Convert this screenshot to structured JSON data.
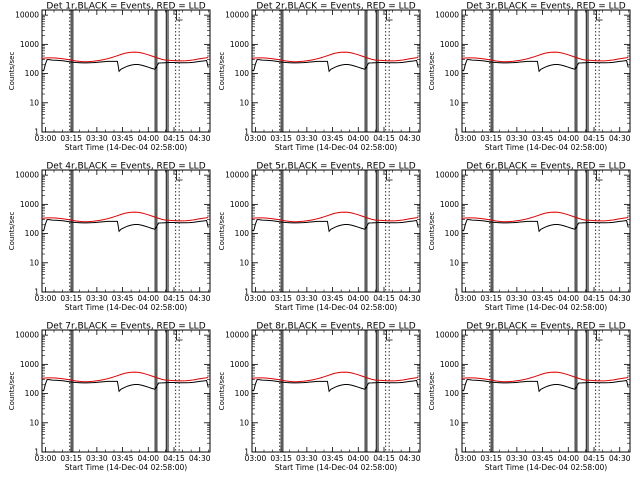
{
  "chart_data": {
    "type": "line",
    "layout": {
      "rows": 3,
      "cols": 3
    },
    "xlabel": "Start Time (14-Dec-04 02:58:00)",
    "ylabel": "Counts/sec",
    "x_ticks": [
      "03:00",
      "03:15",
      "03:30",
      "03:45",
      "04:00",
      "04:15",
      "04:30"
    ],
    "x_tick_minutes": [
      0,
      15,
      30,
      45,
      60,
      75,
      90
    ],
    "xlim_minutes": [
      -2,
      96
    ],
    "y_scale": "log",
    "ylim": [
      1,
      15000
    ],
    "y_ticks": [
      "1",
      "10",
      "100",
      "1000",
      "10000"
    ],
    "y_tick_values": [
      1,
      10,
      100,
      1000,
      10000
    ],
    "series_colors": {
      "events": "#000000",
      "lld": "#e00000"
    },
    "markers": {
      "solid_lines_minutes": [
        15.0,
        16.0,
        64.0,
        65.0,
        70.5,
        71.5
      ],
      "dotted_lines_minutes": [
        14.2,
        76.0,
        78.0
      ],
      "step_flag_minute": 76.5
    },
    "panels": [
      {
        "title": "Det 1r,BLACK = Events, RED = LLD"
      },
      {
        "title": "Det 2r,BLACK = Events, RED = LLD"
      },
      {
        "title": "Det 3r,BLACK = Events, RED = LLD"
      },
      {
        "title": "Det 4r,BLACK = Events, RED = LLD"
      },
      {
        "title": "Det 5r,BLACK = Events, RED = LLD"
      },
      {
        "title": "Det 6r,BLACK = Events, RED = LLD"
      },
      {
        "title": "Det 7r,BLACK = Events, RED = LLD"
      },
      {
        "title": "Det 8r,BLACK = Events, RED = LLD"
      },
      {
        "title": "Det 9r,BLACK = Events, RED = LLD"
      }
    ],
    "events_series": {
      "name": "Events",
      "x_minutes": [
        -2,
        -1,
        0,
        1,
        2,
        4,
        6,
        8,
        10,
        12,
        14,
        16,
        18,
        20,
        22,
        24,
        26,
        28,
        30,
        32,
        34,
        36,
        38,
        40,
        42,
        43,
        44,
        46,
        48,
        50,
        52,
        54,
        56,
        58,
        60,
        62,
        64,
        66,
        68,
        70,
        72,
        74,
        76,
        78,
        80,
        82,
        84,
        86,
        88,
        90,
        92,
        94,
        95
      ],
      "values": [
        130,
        125,
        210,
        300,
        300,
        290,
        285,
        280,
        275,
        265,
        255,
        245,
        240,
        235,
        232,
        232,
        235,
        238,
        242,
        248,
        255,
        260,
        262,
        262,
        262,
        120,
        140,
        160,
        180,
        195,
        205,
        205,
        195,
        180,
        165,
        150,
        140,
        230,
        232,
        235,
        240,
        240,
        238,
        236,
        236,
        236,
        238,
        242,
        250,
        260,
        270,
        280,
        160
      ]
    },
    "lld_series": {
      "name": "LLD",
      "x_minutes": [
        -2,
        0,
        2,
        4,
        6,
        8,
        10,
        12,
        14,
        16,
        18,
        20,
        22,
        24,
        26,
        28,
        30,
        32,
        34,
        36,
        38,
        40,
        42,
        44,
        46,
        48,
        50,
        52,
        54,
        56,
        58,
        60,
        62,
        64,
        66,
        68,
        70,
        72,
        74,
        76,
        78,
        80,
        82,
        84,
        86,
        88,
        90,
        92,
        94,
        95
      ],
      "values": [
        330,
        340,
        345,
        345,
        340,
        330,
        320,
        310,
        295,
        280,
        270,
        260,
        255,
        255,
        258,
        265,
        275,
        285,
        300,
        320,
        345,
        375,
        410,
        450,
        490,
        520,
        540,
        545,
        535,
        510,
        475,
        440,
        400,
        365,
        330,
        305,
        290,
        285,
        280,
        275,
        272,
        272,
        275,
        282,
        292,
        305,
        320,
        335,
        350,
        360
      ]
    }
  }
}
